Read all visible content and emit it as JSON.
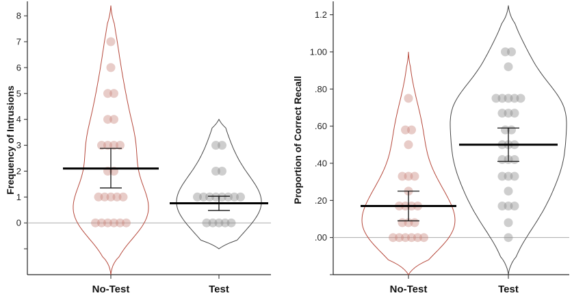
{
  "colors": {
    "no_test": "#b5473a",
    "no_test_dot": "#c9857b",
    "test": "#444444",
    "test_dot": "#8a8a8a",
    "mean": "#000000",
    "zero_line": "#aaaaaa"
  },
  "chart_data": [
    {
      "type": "violin",
      "ylabel": "Frequency of Intrusions",
      "ylim": [
        -2,
        8.4
      ],
      "yticks": [
        0,
        1,
        2,
        3,
        4,
        5,
        6,
        7,
        8
      ],
      "yticks_unlabeled": [
        -1
      ],
      "tick_labels": [
        "0",
        "1",
        "2",
        "3",
        "4",
        "5",
        "6",
        "7",
        "8"
      ],
      "categories": [
        "No-Test",
        "Test"
      ],
      "series": [
        {
          "category": "No-Test",
          "color_key": "no_test",
          "points": [
            0,
            0,
            0,
            0,
            0,
            0,
            1,
            1,
            1,
            1,
            1,
            2,
            2,
            3,
            3,
            3,
            3,
            4,
            4,
            5,
            5,
            6,
            7
          ],
          "mean": 2.1,
          "ci": [
            1.35,
            2.88
          ],
          "violin_range": [
            -2,
            8.4
          ]
        },
        {
          "category": "Test",
          "color_key": "test",
          "points": [
            0,
            0,
            0,
            0,
            0,
            1,
            1,
            1,
            1,
            1,
            1,
            1,
            1,
            2,
            2,
            3,
            3
          ],
          "mean": 0.76,
          "ci": [
            0.48,
            1.03
          ],
          "violin_range": [
            -1,
            4
          ]
        }
      ]
    },
    {
      "type": "violin",
      "ylabel": "Proportion of Correct Recall",
      "ylim": [
        -0.2,
        1.25
      ],
      "yticks": [
        0,
        0.2,
        0.4,
        0.6,
        0.8,
        1.0,
        1.2
      ],
      "yticks_unlabeled": [
        -0.2
      ],
      "tick_labels": [
        ".00",
        ".20",
        ".40",
        ".60",
        ".80",
        "1.00",
        "1.2"
      ],
      "categories": [
        "No-Test",
        "Test"
      ],
      "series": [
        {
          "category": "No-Test",
          "color_key": "no_test",
          "points": [
            0,
            0,
            0,
            0,
            0,
            0,
            0.08,
            0.08,
            0.08,
            0.17,
            0.17,
            0.17,
            0.17,
            0.25,
            0.33,
            0.33,
            0.33,
            0.5,
            0.58,
            0.58,
            0.75
          ],
          "mean": 0.17,
          "ci": [
            0.09,
            0.25
          ],
          "violin_range": [
            -0.2,
            1.0
          ]
        },
        {
          "category": "Test",
          "color_key": "test",
          "points": [
            0,
            0.08,
            0.17,
            0.17,
            0.17,
            0.25,
            0.33,
            0.33,
            0.33,
            0.42,
            0.42,
            0.42,
            0.5,
            0.5,
            0.5,
            0.58,
            0.58,
            0.67,
            0.67,
            0.67,
            0.75,
            0.75,
            0.75,
            0.75,
            0.75,
            0.92,
            1.0,
            1.0
          ],
          "mean": 0.5,
          "ci": [
            0.41,
            0.59
          ],
          "violin_range": [
            -0.2,
            1.25
          ]
        }
      ]
    }
  ]
}
